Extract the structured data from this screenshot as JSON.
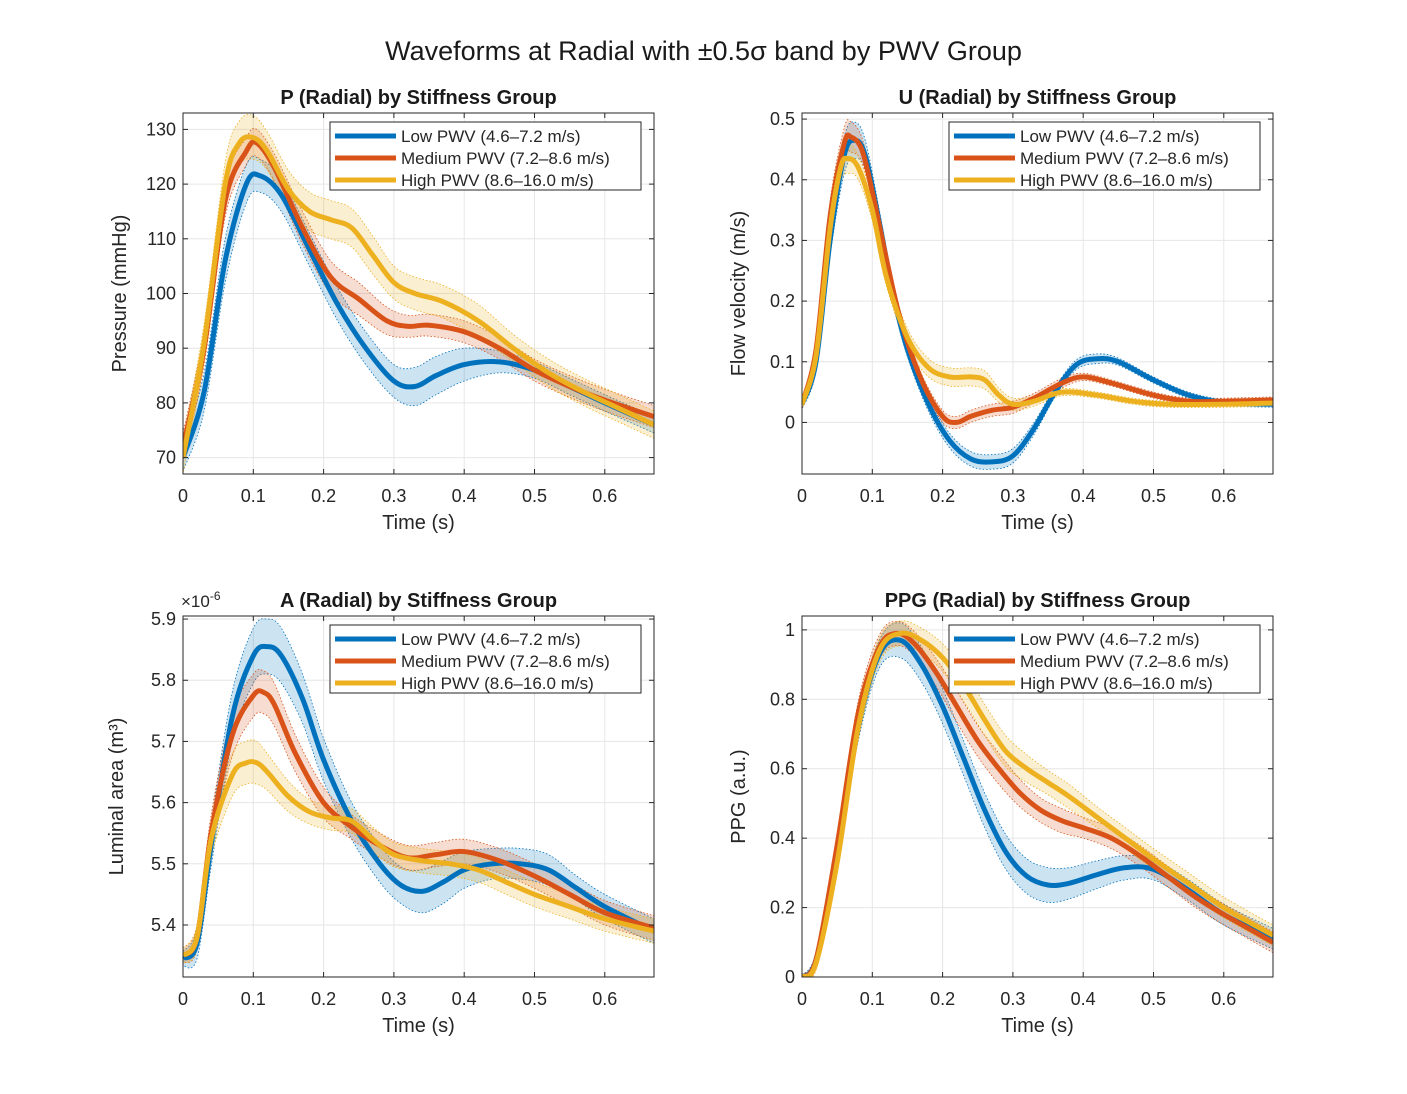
{
  "figure": {
    "title": "Waveforms at Radial with ±0.5σ band by PWV Group"
  },
  "colors": {
    "low": "#0072BD",
    "medium": "#D95319",
    "high": "#EDB120"
  },
  "chart_data": [
    {
      "type": "line",
      "title": "P (Radial) by Stiffness Group",
      "xlabel": "Time (s)",
      "ylabel": "Pressure (mmHg)",
      "xlim": [
        0,
        0.67
      ],
      "ylim": [
        67,
        133
      ],
      "xticks": [
        0,
        0.1,
        0.2,
        0.3,
        0.4,
        0.5,
        0.6
      ],
      "yticks": [
        70,
        80,
        90,
        100,
        110,
        120,
        130
      ],
      "grid": true,
      "legend": "top-right",
      "band": "±0.5σ",
      "series": [
        {
          "name": "Low PWV (4.6–7.2 m/s)",
          "color": "low",
          "x": [
            0,
            0.03,
            0.06,
            0.09,
            0.11,
            0.14,
            0.18,
            0.22,
            0.26,
            0.3,
            0.33,
            0.36,
            0.4,
            0.45,
            0.5,
            0.55,
            0.6,
            0.67
          ],
          "y": [
            70,
            82,
            106,
            120,
            121.5,
            118,
            108,
            98,
            90,
            84,
            83,
            85,
            87,
            87.5,
            86,
            83,
            80,
            76
          ],
          "sd": [
            2.5,
            3.5,
            4,
            3.5,
            3,
            3,
            3,
            3,
            3,
            3,
            3.5,
            3.5,
            3,
            2,
            1.5,
            1.5,
            1.5,
            1.5
          ]
        },
        {
          "name": "Medium PWV (7.2–8.6 m/s)",
          "color": "medium",
          "x": [
            0,
            0.03,
            0.06,
            0.09,
            0.105,
            0.13,
            0.17,
            0.21,
            0.25,
            0.29,
            0.32,
            0.35,
            0.4,
            0.45,
            0.5,
            0.55,
            0.6,
            0.67
          ],
          "y": [
            72,
            90,
            117,
            126,
            127.5,
            123,
            112,
            103,
            99,
            95,
            94,
            94.2,
            93,
            90,
            86,
            83,
            80.5,
            77.5
          ],
          "sd": [
            2.5,
            3,
            3,
            2.5,
            2.5,
            2.5,
            3,
            3,
            3,
            2.5,
            2,
            2,
            2,
            2,
            2,
            2,
            2,
            2
          ]
        },
        {
          "name": "High PWV (8.6–16.0 m/s)",
          "color": "high",
          "x": [
            0,
            0.03,
            0.06,
            0.08,
            0.1,
            0.12,
            0.15,
            0.18,
            0.21,
            0.24,
            0.27,
            0.3,
            0.33,
            0.37,
            0.42,
            0.47,
            0.52,
            0.57,
            0.62,
            0.67
          ],
          "y": [
            70,
            91,
            120,
            127.5,
            128.5,
            126,
            119,
            115,
            113.5,
            112,
            107,
            102,
            100,
            98.5,
            95,
            90,
            85.5,
            82,
            79,
            76
          ],
          "sd": [
            3,
            3.5,
            4,
            4,
            4,
            3.5,
            3.5,
            3.5,
            3.5,
            3.5,
            3.5,
            3,
            3,
            3,
            3,
            2.5,
            2.5,
            2.5,
            2.5,
            2.5
          ]
        }
      ]
    },
    {
      "type": "line",
      "title": "U (Radial) by Stiffness Group",
      "xlabel": "Time (s)",
      "ylabel": "Flow velocity (m/s)",
      "xlim": [
        0,
        0.67
      ],
      "ylim": [
        -0.085,
        0.51
      ],
      "xticks": [
        0,
        0.1,
        0.2,
        0.3,
        0.4,
        0.5,
        0.6
      ],
      "yticks": [
        0,
        0.1,
        0.2,
        0.3,
        0.4,
        0.5
      ],
      "grid": true,
      "legend": "top-right",
      "band": "±0.5σ",
      "series": [
        {
          "name": "Low PWV (4.6–7.2 m/s)",
          "color": "low",
          "x": [
            0,
            0.02,
            0.04,
            0.06,
            0.075,
            0.09,
            0.11,
            0.13,
            0.15,
            0.18,
            0.21,
            0.24,
            0.27,
            0.3,
            0.33,
            0.36,
            0.39,
            0.42,
            0.45,
            0.5,
            0.55,
            0.6,
            0.67
          ],
          "y": [
            0.03,
            0.1,
            0.3,
            0.44,
            0.465,
            0.44,
            0.33,
            0.21,
            0.12,
            0.03,
            -0.03,
            -0.06,
            -0.065,
            -0.055,
            -0.01,
            0.05,
            0.095,
            0.105,
            0.1,
            0.07,
            0.045,
            0.033,
            0.03
          ],
          "sd": [
            0.008,
            0.015,
            0.025,
            0.03,
            0.03,
            0.025,
            0.02,
            0.015,
            0.012,
            0.012,
            0.012,
            0.012,
            0.012,
            0.012,
            0.01,
            0.008,
            0.008,
            0.008,
            0.006,
            0.005,
            0.005,
            0.005,
            0.005
          ]
        },
        {
          "name": "Medium PWV (7.2–8.6 m/s)",
          "color": "medium",
          "x": [
            0,
            0.02,
            0.04,
            0.06,
            0.07,
            0.085,
            0.1,
            0.12,
            0.14,
            0.17,
            0.2,
            0.22,
            0.24,
            0.27,
            0.3,
            0.33,
            0.37,
            0.4,
            0.44,
            0.5,
            0.55,
            0.6,
            0.67
          ],
          "y": [
            0.03,
            0.12,
            0.34,
            0.46,
            0.47,
            0.45,
            0.38,
            0.27,
            0.17,
            0.07,
            0.01,
            0.0,
            0.01,
            0.02,
            0.025,
            0.04,
            0.065,
            0.075,
            0.065,
            0.045,
            0.035,
            0.035,
            0.037
          ],
          "sd": [
            0.008,
            0.015,
            0.025,
            0.025,
            0.025,
            0.02,
            0.015,
            0.012,
            0.01,
            0.01,
            0.01,
            0.01,
            0.01,
            0.01,
            0.01,
            0.008,
            0.008,
            0.006,
            0.005,
            0.005,
            0.005,
            0.005,
            0.005
          ]
        },
        {
          "name": "High PWV (8.6–16.0 m/s)",
          "color": "high",
          "x": [
            0,
            0.02,
            0.04,
            0.055,
            0.065,
            0.08,
            0.1,
            0.12,
            0.15,
            0.18,
            0.21,
            0.24,
            0.26,
            0.28,
            0.3,
            0.33,
            0.37,
            0.42,
            0.47,
            0.52,
            0.6,
            0.67
          ],
          "y": [
            0.03,
            0.11,
            0.32,
            0.42,
            0.435,
            0.42,
            0.35,
            0.24,
            0.14,
            0.09,
            0.075,
            0.075,
            0.07,
            0.045,
            0.03,
            0.035,
            0.05,
            0.045,
            0.035,
            0.03,
            0.03,
            0.032
          ],
          "sd": [
            0.008,
            0.015,
            0.025,
            0.025,
            0.025,
            0.02,
            0.018,
            0.015,
            0.015,
            0.015,
            0.015,
            0.015,
            0.015,
            0.012,
            0.01,
            0.008,
            0.006,
            0.005,
            0.005,
            0.005,
            0.005,
            0.005
          ]
        }
      ]
    },
    {
      "type": "line",
      "title": "A (Radial) by Stiffness Group",
      "xlabel": "Time (s)",
      "ylabel": "Luminal area (m³)",
      "exponent": "×10",
      "exponent_power": "-6",
      "xlim": [
        0,
        0.67
      ],
      "ylim": [
        5.315,
        5.905
      ],
      "xticks": [
        0,
        0.1,
        0.2,
        0.3,
        0.4,
        0.5,
        0.6
      ],
      "yticks": [
        5.4,
        5.5,
        5.6,
        5.7,
        5.8,
        5.9
      ],
      "grid": true,
      "legend": "top-right",
      "band": "±0.5σ",
      "series": [
        {
          "name": "Low PWV (4.6–7.2 m/s)",
          "color": "low",
          "x": [
            0,
            0.02,
            0.04,
            0.07,
            0.1,
            0.12,
            0.14,
            0.17,
            0.2,
            0.24,
            0.28,
            0.31,
            0.34,
            0.37,
            0.4,
            0.44,
            0.48,
            0.52,
            0.56,
            0.6,
            0.67
          ],
          "y": [
            5.345,
            5.37,
            5.53,
            5.74,
            5.84,
            5.855,
            5.84,
            5.77,
            5.67,
            5.57,
            5.5,
            5.465,
            5.455,
            5.47,
            5.49,
            5.5,
            5.5,
            5.49,
            5.46,
            5.43,
            5.39
          ],
          "sd": [
            0.012,
            0.025,
            0.035,
            0.04,
            0.045,
            0.045,
            0.045,
            0.04,
            0.035,
            0.03,
            0.03,
            0.03,
            0.035,
            0.035,
            0.03,
            0.025,
            0.025,
            0.025,
            0.02,
            0.02,
            0.02
          ]
        },
        {
          "name": "Medium PWV (7.2–8.6 m/s)",
          "color": "medium",
          "x": [
            0,
            0.02,
            0.04,
            0.07,
            0.1,
            0.115,
            0.13,
            0.16,
            0.2,
            0.24,
            0.28,
            0.32,
            0.36,
            0.4,
            0.45,
            0.5,
            0.55,
            0.6,
            0.67
          ],
          "y": [
            5.35,
            5.38,
            5.55,
            5.71,
            5.775,
            5.78,
            5.76,
            5.68,
            5.6,
            5.56,
            5.53,
            5.51,
            5.515,
            5.52,
            5.505,
            5.48,
            5.45,
            5.42,
            5.395
          ],
          "sd": [
            0.012,
            0.02,
            0.03,
            0.035,
            0.035,
            0.035,
            0.035,
            0.03,
            0.025,
            0.02,
            0.02,
            0.02,
            0.02,
            0.02,
            0.02,
            0.02,
            0.02,
            0.02,
            0.02
          ]
        },
        {
          "name": "High PWV (8.6–16.0 m/s)",
          "color": "high",
          "x": [
            0,
            0.02,
            0.04,
            0.07,
            0.09,
            0.105,
            0.12,
            0.15,
            0.18,
            0.21,
            0.24,
            0.27,
            0.3,
            0.34,
            0.38,
            0.42,
            0.46,
            0.5,
            0.55,
            0.6,
            0.67
          ],
          "y": [
            5.35,
            5.38,
            5.54,
            5.645,
            5.665,
            5.665,
            5.65,
            5.61,
            5.585,
            5.575,
            5.57,
            5.54,
            5.515,
            5.505,
            5.5,
            5.49,
            5.47,
            5.45,
            5.43,
            5.41,
            5.39
          ],
          "sd": [
            0.012,
            0.02,
            0.03,
            0.035,
            0.035,
            0.035,
            0.03,
            0.025,
            0.02,
            0.02,
            0.02,
            0.02,
            0.02,
            0.02,
            0.02,
            0.02,
            0.02,
            0.02,
            0.02,
            0.02,
            0.02
          ]
        }
      ]
    },
    {
      "type": "line",
      "title": "PPG (Radial) by Stiffness Group",
      "xlabel": "Time (s)",
      "ylabel": "PPG (a.u.)",
      "xlim": [
        0,
        0.67
      ],
      "ylim": [
        0,
        1.04
      ],
      "xticks": [
        0,
        0.1,
        0.2,
        0.3,
        0.4,
        0.5,
        0.6
      ],
      "yticks": [
        0,
        0.2,
        0.4,
        0.6,
        0.8,
        1
      ],
      "grid": true,
      "legend": "top-right",
      "band": "±0.5σ",
      "series": [
        {
          "name": "Low PWV (4.6–7.2 m/s)",
          "color": "low",
          "x": [
            0,
            0.02,
            0.05,
            0.08,
            0.11,
            0.14,
            0.17,
            0.2,
            0.23,
            0.26,
            0.29,
            0.32,
            0.35,
            0.38,
            0.42,
            0.46,
            0.5,
            0.55,
            0.6,
            0.67
          ],
          "y": [
            0,
            0.05,
            0.35,
            0.72,
            0.93,
            0.97,
            0.9,
            0.78,
            0.63,
            0.48,
            0.36,
            0.29,
            0.265,
            0.27,
            0.295,
            0.315,
            0.31,
            0.25,
            0.18,
            0.11
          ],
          "sd": [
            0.005,
            0.02,
            0.03,
            0.04,
            0.04,
            0.05,
            0.05,
            0.05,
            0.05,
            0.05,
            0.05,
            0.05,
            0.05,
            0.045,
            0.04,
            0.035,
            0.03,
            0.03,
            0.03,
            0.03
          ]
        },
        {
          "name": "Medium PWV (7.2–8.6 m/s)",
          "color": "medium",
          "x": [
            0,
            0.02,
            0.05,
            0.08,
            0.11,
            0.135,
            0.16,
            0.19,
            0.22,
            0.25,
            0.28,
            0.31,
            0.34,
            0.37,
            0.4,
            0.44,
            0.48,
            0.52,
            0.56,
            0.6,
            0.67
          ],
          "y": [
            0,
            0.05,
            0.38,
            0.76,
            0.95,
            0.99,
            0.96,
            0.88,
            0.78,
            0.68,
            0.6,
            0.53,
            0.48,
            0.45,
            0.43,
            0.4,
            0.35,
            0.29,
            0.23,
            0.18,
            0.1
          ],
          "sd": [
            0.005,
            0.02,
            0.03,
            0.035,
            0.035,
            0.035,
            0.035,
            0.04,
            0.045,
            0.045,
            0.045,
            0.04,
            0.035,
            0.035,
            0.03,
            0.03,
            0.03,
            0.03,
            0.03,
            0.03,
            0.03
          ]
        },
        {
          "name": "High PWV (8.6–16.0 m/s)",
          "color": "high",
          "x": [
            0,
            0.02,
            0.05,
            0.08,
            0.11,
            0.14,
            0.17,
            0.2,
            0.23,
            0.26,
            0.29,
            0.32,
            0.35,
            0.38,
            0.42,
            0.46,
            0.5,
            0.55,
            0.6,
            0.67
          ],
          "y": [
            0,
            0.04,
            0.33,
            0.72,
            0.94,
            0.99,
            0.97,
            0.92,
            0.84,
            0.74,
            0.65,
            0.6,
            0.56,
            0.52,
            0.46,
            0.4,
            0.34,
            0.27,
            0.2,
            0.12
          ],
          "sd": [
            0.005,
            0.02,
            0.03,
            0.035,
            0.035,
            0.035,
            0.035,
            0.04,
            0.045,
            0.045,
            0.045,
            0.04,
            0.035,
            0.035,
            0.03,
            0.03,
            0.03,
            0.03,
            0.03,
            0.03
          ]
        }
      ]
    }
  ]
}
